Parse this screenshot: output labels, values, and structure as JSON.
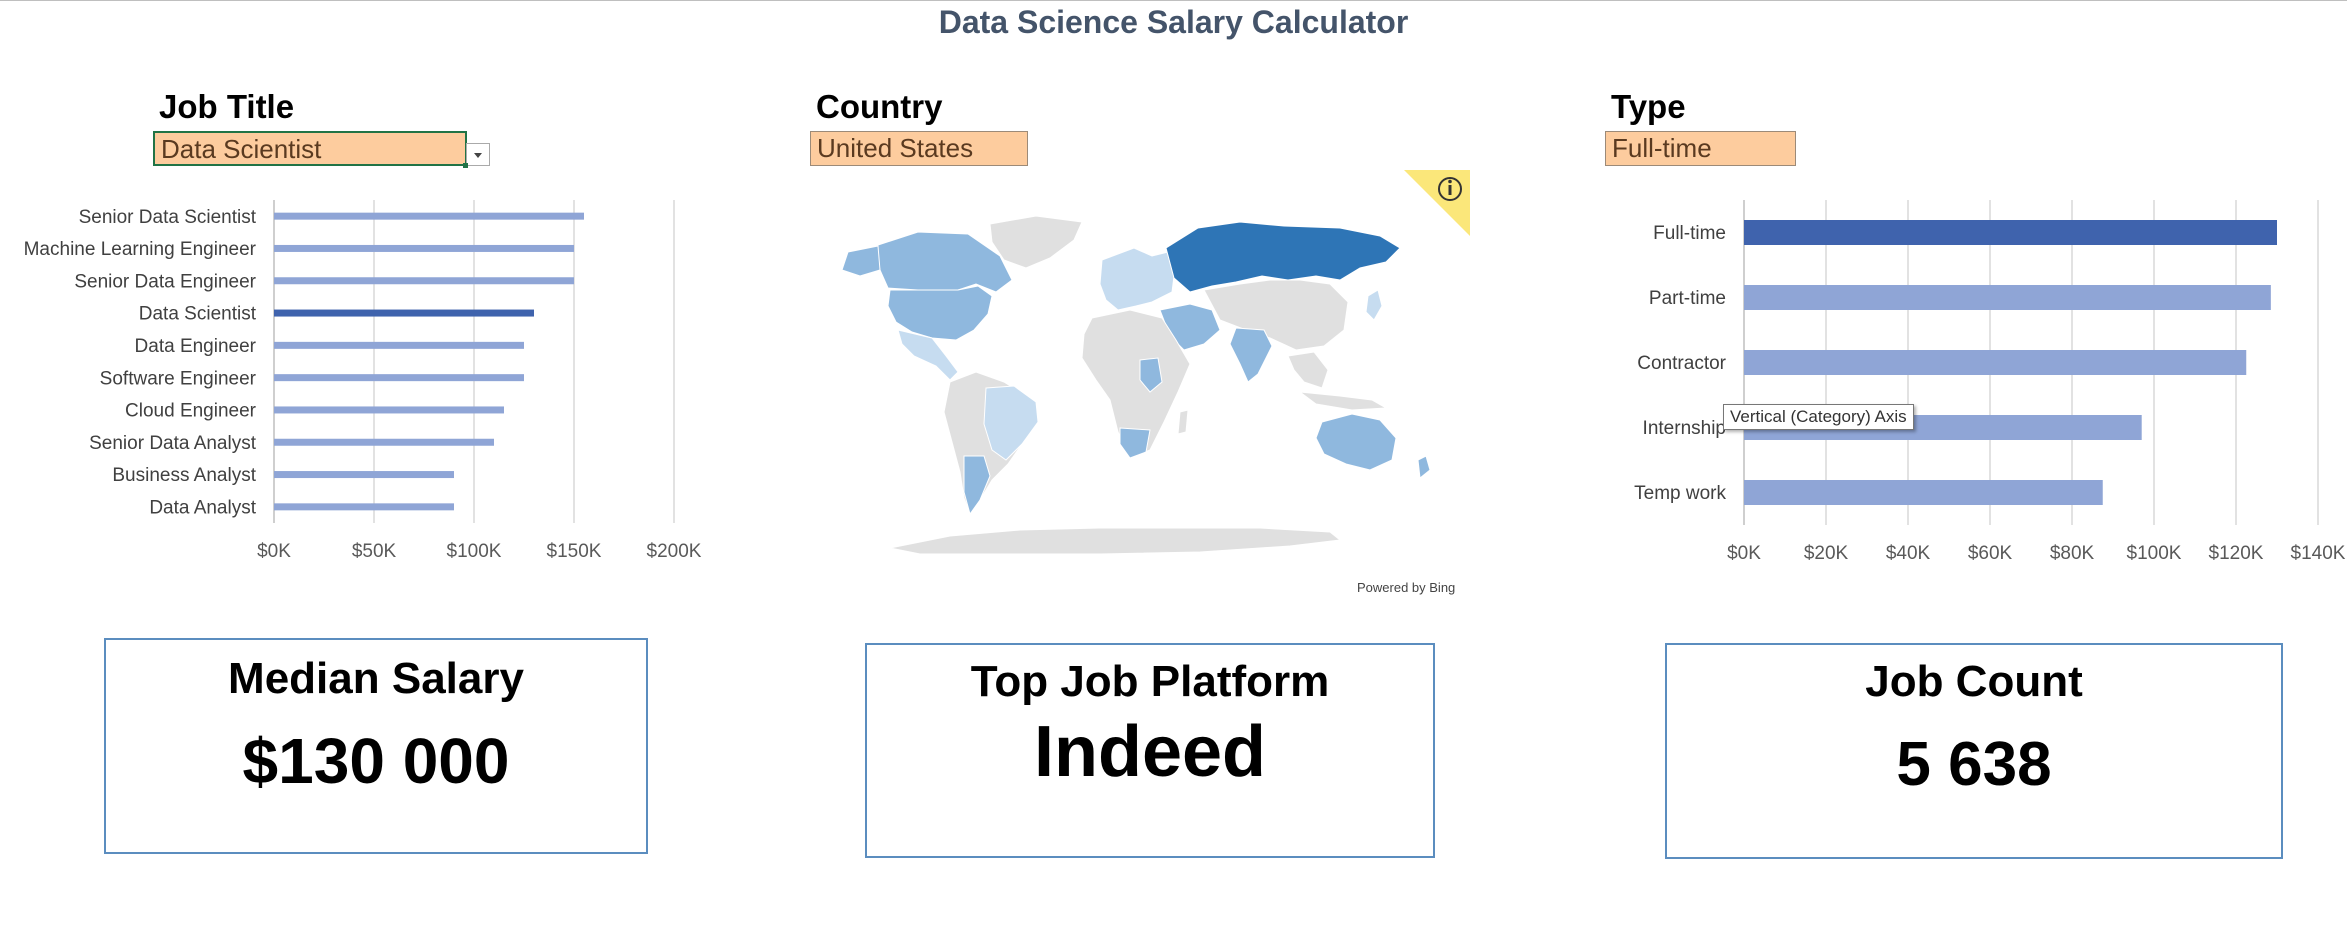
{
  "title": "Data Science Salary Calculator",
  "filters": {
    "job_title": {
      "label": "Job Title",
      "value": "Data Scientist"
    },
    "country": {
      "label": "Country",
      "value": "United States"
    },
    "type": {
      "label": "Type",
      "value": "Full-time"
    }
  },
  "colors": {
    "highlight": "#3f63ad",
    "bar": "#8fa5d6",
    "map_dark": "#2e75b6",
    "map_mid": "#8fb8de",
    "map_light": "#c6dcf0",
    "map_gray": "#e0e0e0",
    "selector_bg": "#fdcc9e",
    "info_badge": "#fbe77a"
  },
  "map": {
    "attribution": "Powered by Bing",
    "info_icon": "info-icon"
  },
  "tooltip": "Vertical (Category) Axis",
  "chart_data": [
    {
      "type": "bar",
      "categories": [
        "Senior Data Scientist",
        "Machine Learning Engineer",
        "Senior Data Engineer",
        "Data Scientist",
        "Data Engineer",
        "Software Engineer",
        "Cloud Engineer",
        "Senior Data Analyst",
        "Business Analyst",
        "Data Analyst"
      ],
      "values": [
        155000,
        150000,
        150000,
        130000,
        125000,
        125000,
        115000,
        110000,
        90000,
        90000
      ],
      "highlight": "Data Scientist",
      "xlim": [
        0,
        200000
      ],
      "ticks": [
        "$0K",
        "$50K",
        "$100K",
        "$150K",
        "$200K"
      ],
      "grid": true
    },
    {
      "type": "bar",
      "categories": [
        "Full-time",
        "Part-time",
        "Contractor",
        "Internship",
        "Temp work"
      ],
      "values": [
        130000,
        128500,
        122500,
        97000,
        87500
      ],
      "highlight": "Full-time",
      "xlim": [
        0,
        140000
      ],
      "ticks": [
        "$0K",
        "$20K",
        "$40K",
        "$60K",
        "$80K",
        "$100K",
        "$120K",
        "$140K"
      ],
      "grid": true
    }
  ],
  "kpis": [
    {
      "label": "Median Salary",
      "value": "$130 000"
    },
    {
      "label": "Top Job Platform",
      "value": "Indeed"
    },
    {
      "label": "Job Count",
      "value": "5 638"
    }
  ]
}
